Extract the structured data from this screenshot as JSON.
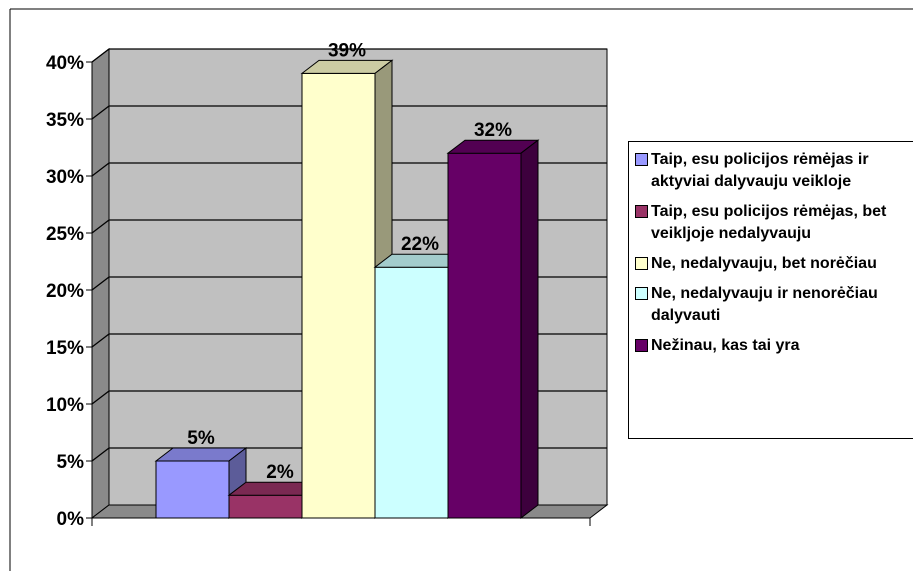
{
  "chart_data": {
    "type": "bar",
    "title": "",
    "xlabel": "",
    "ylabel": "",
    "categories": [
      "Taip, esu policijos rėmėjas ir aktyviai dalyvauju veikloje",
      "Taip, esu policijos rėmėjas, bet veikljoje nedalyvauju",
      "Ne, nedalyvauju, bet norėčiau",
      "Ne, nedalyvauju ir nenorėčiau dalyvauti",
      "Nežinau, kas tai yra"
    ],
    "values": [
      5,
      2,
      39,
      22,
      32
    ],
    "value_labels": [
      "5%",
      "2%",
      "39%",
      "22%",
      "32%"
    ],
    "colors": [
      "#9999ff",
      "#993366",
      "#ffffcc",
      "#ccffff",
      "#660066"
    ],
    "ylim": [
      0,
      40
    ],
    "yticks": [
      "0%",
      "5%",
      "10%",
      "15%",
      "20%",
      "25%",
      "30%",
      "35%",
      "40%"
    ],
    "grid": true,
    "legend_position": "right",
    "wall_color": "#c0c0c0"
  }
}
